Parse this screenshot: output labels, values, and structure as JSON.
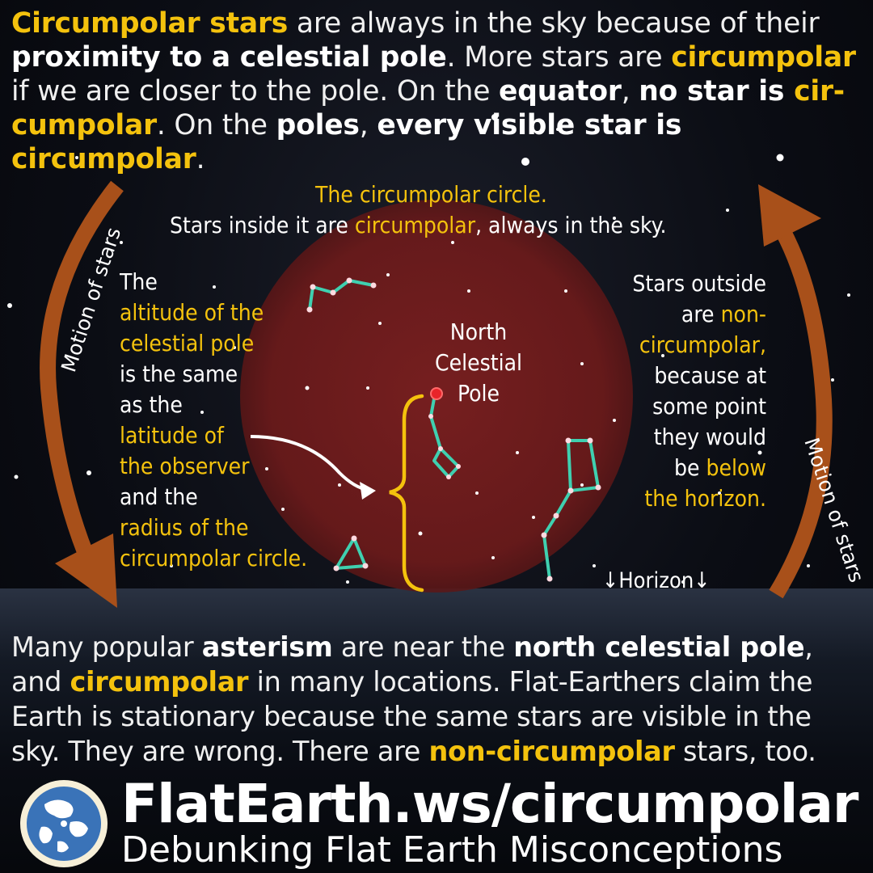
{
  "top_paragraph": {
    "s1": "Circumpolar stars",
    "s2": " are always in the sky because of their ",
    "s3": "proximity to a celestial pole",
    "s4": ". More stars are ",
    "s5": "circumpolar",
    "s6": " if we are closer to the pole. On the ",
    "s7": "equator",
    "s8": ", ",
    "s9": "no star is ",
    "s10": "cir-cumpolar",
    "s11": ". On the ",
    "s12": "poles",
    "s13": ", ",
    "s14": "every visible star is ",
    "s15": "circumpolar",
    "s16": "."
  },
  "circle_caption": {
    "line1": "The circumpolar circle.",
    "line2a": "Stars inside it are ",
    "line2b": "circumpolar",
    "line2c": ", always in the sky."
  },
  "left_note": {
    "l1": "The",
    "l2": "altitude of the",
    "l3": "celestial pole",
    "l4": "is the same",
    "l5": "as the",
    "l6": "latitude of",
    "l7": "the observer",
    "l8": "and the",
    "l9": "radius of the",
    "l10": "circumpolar circle."
  },
  "pole_label": {
    "l1": "North",
    "l2": "Celestial",
    "l3": "Pole"
  },
  "right_note": {
    "l1": "Stars outside",
    "l2a": "are ",
    "l2b": "non-",
    "l3": "circumpolar,",
    "l4": "because at",
    "l5": "some point",
    "l6": "they would",
    "l7a": "be ",
    "l7b": "below",
    "l8": "the horizon."
  },
  "motion_left": "Motion of stars",
  "motion_right": "Motion of stars",
  "horizon_label": "↓Horizon↓",
  "bottom_paragraph": {
    "s1": "Many popular ",
    "s2": "asterism",
    "s3": " are near the ",
    "s4": "north celestial pole",
    "s5": ", and ",
    "s6": "circumpolar",
    "s7": " in many locations. Flat-Earthers claim the Earth is stationary because the same stars are visible in the sky. They are wrong. There are ",
    "s8": "non-circumpolar",
    "s9": " stars, too."
  },
  "footer": {
    "url": "FlatEarth.ws/circumpolar",
    "subtitle": "Debunking Flat Earth Misconceptions"
  },
  "colors": {
    "highlight": "#f4c20d",
    "circle": "#7a1c1c",
    "arrow": "#a8501a",
    "constellation": "#3fd0b0"
  }
}
